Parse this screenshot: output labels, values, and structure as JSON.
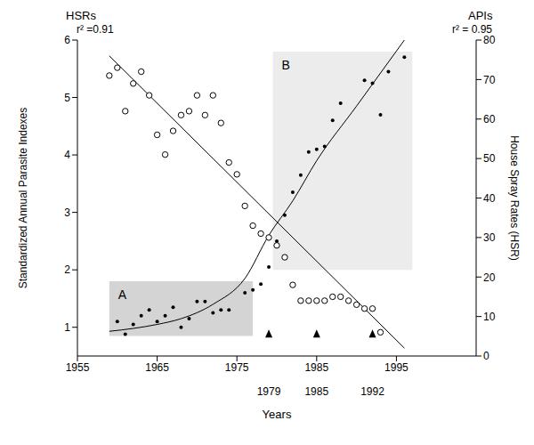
{
  "chart_data": {
    "type": "scatter",
    "x_label": "Years",
    "y_label": "Standardized Annual Parasite Indexes",
    "y2_label": "House Spray Rates (HSR)",
    "xlim": [
      1955,
      2005
    ],
    "xticks": [
      1955,
      1965,
      1975,
      1985,
      1995
    ],
    "ylim": [
      0.5,
      6
    ],
    "yticks": [
      1,
      2,
      3,
      4,
      5,
      6
    ],
    "y2lim": [
      0,
      80
    ],
    "y2ticks": [
      0,
      10,
      20,
      30,
      40,
      50,
      60,
      70,
      80
    ],
    "grid": false,
    "series": [
      {
        "name": "APIs",
        "color": "#000000",
        "marker": "filled_circle",
        "r2_label": "r² = 0.95",
        "x": [
          1960,
          1961,
          1962,
          1963,
          1964,
          1965,
          1966,
          1967,
          1968,
          1969,
          1970,
          1971,
          1972,
          1973,
          1974,
          1976,
          1977,
          1978,
          1979,
          1980,
          1981,
          1982,
          1983,
          1984,
          1985,
          1986,
          1987,
          1988,
          1991,
          1992,
          1993,
          1994,
          1996
        ],
        "values": [
          1.1,
          0.88,
          1.05,
          1.2,
          1.3,
          1.1,
          1.2,
          1.35,
          1.0,
          1.15,
          1.45,
          1.45,
          1.25,
          1.3,
          1.3,
          1.6,
          1.65,
          1.75,
          2.05,
          2.5,
          2.95,
          3.35,
          3.65,
          4.05,
          4.1,
          4.15,
          4.6,
          4.9,
          5.3,
          5.25,
          4.7,
          5.45,
          5.7
        ],
        "trend": {
          "line_style": "curve",
          "x": [
            1959,
            1962,
            1965,
            1968,
            1972,
            1976,
            1979,
            1982,
            1985,
            1990,
            1996
          ],
          "values": [
            0.93,
            0.98,
            1.05,
            1.15,
            1.4,
            1.85,
            2.6,
            3.2,
            3.9,
            4.85,
            6.0
          ]
        }
      },
      {
        "name": "HSRs",
        "axis": "y2",
        "color": "#000000",
        "marker": "open_circle",
        "r2_label": "r² =0.91",
        "x": [
          1959,
          1960,
          1961,
          1962,
          1963,
          1964,
          1965,
          1966,
          1967,
          1968,
          1969,
          1970,
          1971,
          1972,
          1973,
          1974,
          1975,
          1976,
          1977,
          1978,
          1979,
          1980,
          1981,
          1982,
          1983,
          1984,
          1985,
          1986,
          1987,
          1988,
          1989,
          1990,
          1991,
          1992,
          1993
        ],
        "values": [
          71,
          73,
          62,
          69,
          72,
          66,
          56,
          51,
          57,
          61,
          62,
          66,
          61,
          66,
          59,
          49,
          46,
          38,
          33,
          31,
          30,
          28,
          25,
          18,
          14,
          14,
          14,
          14,
          15,
          15,
          14,
          13,
          12,
          12,
          6
        ],
        "trend": {
          "line_style": "straight",
          "x": [
            1959,
            1996
          ],
          "values": [
            76,
            2
          ]
        }
      }
    ],
    "regions": [
      {
        "label": "A",
        "color": "#d4d4d4",
        "x": [
          1959,
          1977
        ],
        "y": [
          0.85,
          1.8
        ]
      },
      {
        "label": "B",
        "color": "#ececec",
        "x": [
          1979.5,
          1997
        ],
        "y": [
          2.0,
          5.8
        ]
      }
    ],
    "markers": {
      "marker": "triangle",
      "x": [
        1979,
        1985,
        1992
      ]
    }
  }
}
